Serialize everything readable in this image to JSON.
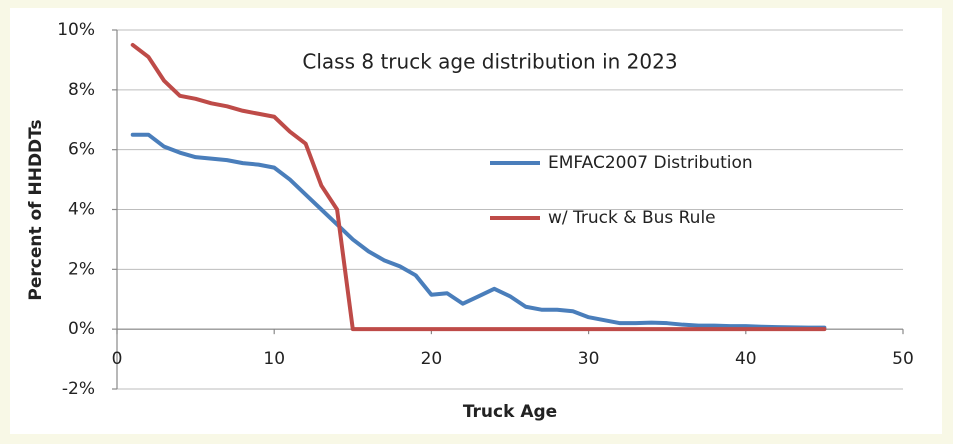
{
  "chart_data": {
    "type": "line",
    "title": "Class 8 truck age distribution in 2023",
    "x_label": "Truck Age",
    "y_label": "Percent of HHDDTs",
    "x": [
      1,
      2,
      3,
      4,
      5,
      6,
      7,
      8,
      9,
      10,
      11,
      12,
      13,
      14,
      15,
      16,
      17,
      18,
      19,
      20,
      21,
      22,
      23,
      24,
      25,
      26,
      27,
      28,
      29,
      30,
      31,
      32,
      33,
      34,
      35,
      36,
      37,
      38,
      39,
      40,
      41,
      42,
      43,
      44,
      45
    ],
    "series": [
      {
        "name": "EMFAC2007 Distribution",
        "color": "#4a7ebb",
        "values": [
          6.5,
          6.5,
          6.1,
          5.9,
          5.75,
          5.7,
          5.65,
          5.55,
          5.5,
          5.4,
          5.0,
          4.5,
          4.0,
          3.5,
          3.0,
          2.6,
          2.3,
          2.1,
          1.8,
          1.15,
          1.2,
          0.85,
          1.1,
          1.35,
          1.1,
          0.75,
          0.65,
          0.65,
          0.6,
          0.4,
          0.3,
          0.2,
          0.2,
          0.22,
          0.2,
          0.15,
          0.12,
          0.12,
          0.1,
          0.1,
          0.08,
          0.07,
          0.06,
          0.05,
          0.05
        ]
      },
      {
        "name": "w/ Truck & Bus Rule",
        "color": "#be4b48",
        "values": [
          9.5,
          9.1,
          8.3,
          7.8,
          7.7,
          7.55,
          7.45,
          7.3,
          7.2,
          7.1,
          6.6,
          6.2,
          4.8,
          4.0,
          0,
          0,
          0,
          0,
          0,
          0,
          0,
          0,
          0,
          0,
          0,
          0,
          0,
          0,
          0,
          0,
          0,
          0,
          0,
          0,
          0,
          0,
          0,
          0,
          0,
          0,
          0,
          0,
          0,
          0,
          0
        ]
      }
    ],
    "xlim": [
      0,
      50
    ],
    "xticks": [
      0,
      10,
      20,
      30,
      40,
      50
    ],
    "ylim": [
      -2,
      10
    ],
    "yticks": [
      {
        "value": -2,
        "label": "-2%"
      },
      {
        "value": 0,
        "label": "0%"
      },
      {
        "value": 2,
        "label": "2%"
      },
      {
        "value": 4,
        "label": "4%"
      },
      {
        "value": 6,
        "label": "6%"
      },
      {
        "value": 8,
        "label": "8%"
      },
      {
        "value": 10,
        "label": "10%"
      }
    ],
    "grid": true
  }
}
